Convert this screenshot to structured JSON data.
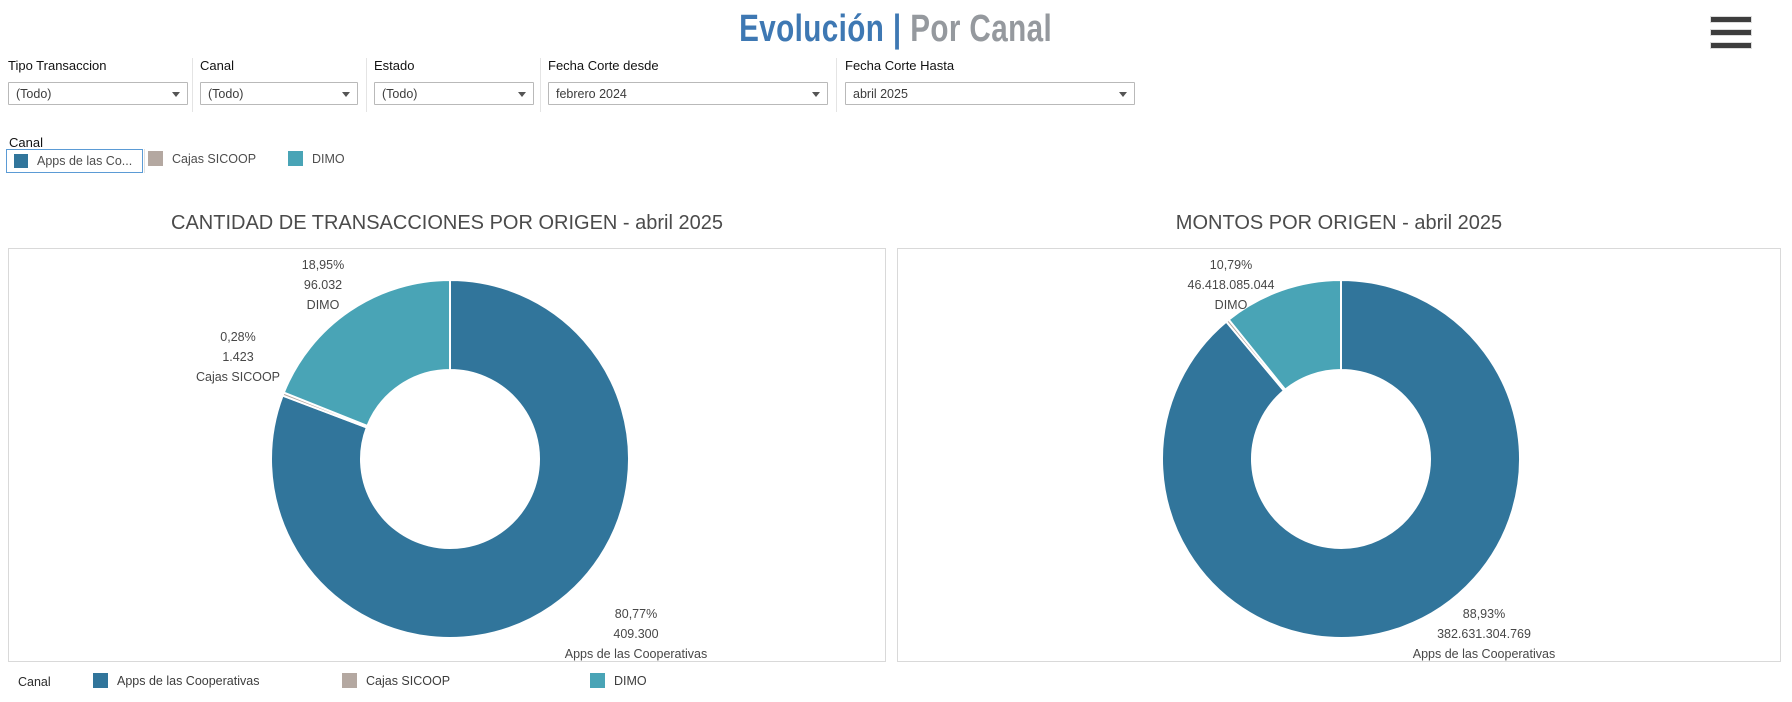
{
  "header": {
    "title_primary": "Evolución",
    "title_separator": "|",
    "title_secondary": "Por Canal",
    "title_primary_color": "#3e78b3",
    "title_secondary_color": "#95999e"
  },
  "filters": [
    {
      "label": "Tipo Transaccion",
      "value": "(Todo)"
    },
    {
      "label": "Canal",
      "value": "(Todo)"
    },
    {
      "label": "Estado",
      "value": "(Todo)"
    },
    {
      "label": "Fecha Corte desde",
      "value": "febrero 2024"
    },
    {
      "label": "Fecha Corte Hasta",
      "value": "abril 2025"
    }
  ],
  "canal_highlight": {
    "label": "Canal",
    "items": [
      {
        "label": "Apps de las Co...",
        "color": "#31759b",
        "selected": true
      },
      {
        "label": "Cajas SICOOP",
        "color": "#b4a8a1",
        "selected": false
      },
      {
        "label": "DIMO",
        "color": "#49a4b6",
        "selected": false
      }
    ]
  },
  "chart_data": [
    {
      "type": "pie",
      "donut": true,
      "title": "CANTIDAD DE TRANSACCIONES POR ORIGEN - abril 2025",
      "categories": [
        "Apps de las Cooperativas",
        "Cajas SICOOP",
        "DIMO"
      ],
      "values": [
        409300,
        1423,
        96032
      ],
      "percentages": [
        80.77,
        0.28,
        18.95
      ],
      "colors": [
        "#31759b",
        "#b4a8a1",
        "#49a4b6"
      ],
      "start_angle_deg": 0,
      "direction": "clockwise",
      "legend_position": "bottom",
      "callouts": [
        {
          "pct": "18,95%",
          "value": "96.032",
          "name": "DIMO"
        },
        {
          "pct": "0,28%",
          "value": "1.423",
          "name": "Cajas SICOOP"
        },
        {
          "pct": "80,77%",
          "value": "409.300",
          "name": "Apps de las Cooperativas"
        }
      ]
    },
    {
      "type": "pie",
      "donut": true,
      "title": "MONTOS POR ORIGEN -  abril 2025",
      "categories": [
        "Apps de las Cooperativas",
        "Cajas SICOOP",
        "DIMO"
      ],
      "values": [
        382631304769,
        null,
        46418085044
      ],
      "percentages": [
        88.93,
        0.28,
        10.79
      ],
      "colors": [
        "#31759b",
        "#b4a8a1",
        "#49a4b6"
      ],
      "start_angle_deg": 0,
      "direction": "clockwise",
      "legend_position": "bottom",
      "callouts": [
        {
          "pct": "10,79%",
          "value": "46.418.085.044",
          "name": "DIMO"
        },
        {
          "pct": "88,93%",
          "value": "382.631.304.769",
          "name": "Apps de las Cooperativas"
        }
      ]
    }
  ],
  "bottom_legend": {
    "label": "Canal",
    "items": [
      {
        "label": "Apps de las Cooperativas",
        "color": "#31759b"
      },
      {
        "label": "Cajas SICOOP",
        "color": "#b4a8a1"
      },
      {
        "label": "DIMO",
        "color": "#49a4b6"
      }
    ]
  }
}
